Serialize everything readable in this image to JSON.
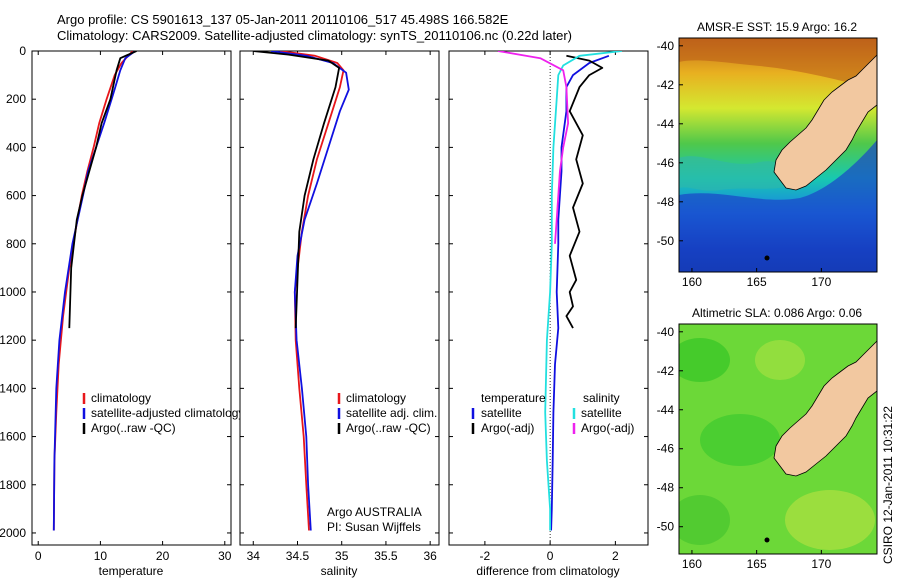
{
  "header": {
    "line1": "Argo profile: CS 5901613_137 05-Jan-2011 20110106_517 45.498S 166.582E",
    "line2": "Climatology: CARS2009. Satellite-adjusted climatology: synTS_20110106.nc (0.22d later)"
  },
  "credit": {
    "argo": "Argo AUSTRALIA",
    "pi": "PI: Susan Wijffels"
  },
  "stamp": "CSIRO 12-Jan-2011 10:31:22",
  "colors": {
    "climatology": "#e8171b",
    "satellite": "#1010e0",
    "argo": "#000000",
    "argo_adj": "#ee22ee",
    "sat_salt": "#22e0e0"
  },
  "chart_data": [
    {
      "type": "line",
      "xlabel": "temperature",
      "xlim": [
        -1,
        31
      ],
      "ylim": [
        2050,
        0
      ],
      "xticks": [
        "0",
        "10",
        "20",
        "30"
      ],
      "yticks": [
        "0",
        "200",
        "400",
        "600",
        "800",
        "1000",
        "1200",
        "1400",
        "1600",
        "1800",
        "2000"
      ],
      "legend": [
        "climatology",
        "satellite-adjusted climatology",
        "Argo(..raw -QC)"
      ],
      "series": [
        {
          "name": "climatology",
          "color": "#e8171b",
          "x": [
            15.2,
            13.4,
            12.3,
            11.0,
            9.8,
            8.9,
            7.9,
            7.0,
            6.3,
            5.0,
            4.0,
            3.3,
            2.9,
            2.6,
            2.5
          ],
          "y": [
            0,
            50,
            100,
            200,
            300,
            400,
            500,
            600,
            700,
            900,
            1100,
            1300,
            1500,
            1700,
            1990
          ]
        },
        {
          "name": "satellite-adjusted climatology",
          "color": "#1010e0",
          "x": [
            15.6,
            14.0,
            13.2,
            12.4,
            11.8,
            10.6,
            9.3,
            8.0,
            7.2,
            5.5,
            4.3,
            3.4,
            2.9,
            2.6,
            2.5
          ],
          "y": [
            0,
            30,
            80,
            150,
            200,
            300,
            400,
            500,
            600,
            800,
            1000,
            1200,
            1400,
            1700,
            1990
          ]
        },
        {
          "name": "Argo(..raw -QC)",
          "color": "#000000",
          "x": [
            15.8,
            13.2,
            12.6,
            11.6,
            10.2,
            9.3,
            8.2,
            7.1,
            6.2,
            5.3,
            5.0
          ],
          "y": [
            0,
            30,
            80,
            200,
            300,
            400,
            500,
            600,
            700,
            900,
            1150
          ]
        }
      ]
    },
    {
      "type": "line",
      "xlabel": "salinity",
      "xlim": [
        33.85,
        36.1
      ],
      "ylim": [
        2050,
        0
      ],
      "xticks": [
        "34",
        "34.5",
        "35",
        "35.5",
        "36"
      ],
      "legend": [
        "climatology",
        "satellite adj. clim.",
        "Argo(..raw -QC)"
      ],
      "series": [
        {
          "name": "climatology",
          "color": "#e8171b",
          "x": [
            34.3,
            34.7,
            34.95,
            35.02,
            34.98,
            34.85,
            34.72,
            34.62,
            34.55,
            34.47,
            34.48,
            34.52,
            34.57,
            34.6,
            34.63
          ],
          "y": [
            0,
            20,
            50,
            80,
            150,
            300,
            450,
            600,
            750,
            1000,
            1200,
            1400,
            1600,
            1800,
            1990
          ]
        },
        {
          "name": "satellite adj. clim.",
          "color": "#1010e0",
          "x": [
            34.2,
            34.6,
            34.9,
            35.05,
            35.08,
            34.98,
            34.85,
            34.72,
            34.58,
            34.5,
            34.47,
            34.49,
            34.55,
            34.6,
            34.62,
            34.65
          ],
          "y": [
            0,
            20,
            50,
            90,
            160,
            250,
            400,
            550,
            700,
            850,
            1000,
            1200,
            1400,
            1600,
            1800,
            1990
          ]
        },
        {
          "name": "Argo(..raw -QC)",
          "color": "#000000",
          "x": [
            34.0,
            34.4,
            34.85,
            34.97,
            34.93,
            34.8,
            34.68,
            34.58,
            34.52,
            34.5,
            34.48
          ],
          "y": [
            0,
            15,
            40,
            70,
            150,
            300,
            450,
            600,
            750,
            950,
            1150
          ]
        }
      ]
    },
    {
      "type": "line",
      "xlabel": "difference from climatology",
      "xlim": [
        -3.1,
        3.0
      ],
      "ylim": [
        2050,
        0
      ],
      "xticks": [
        "-2",
        "0",
        "2"
      ],
      "legend_temperature": {
        "title": "temperature",
        "items": [
          "satellite",
          "Argo(-adj)"
        ]
      },
      "legend_salinity": {
        "title": "salinity",
        "items": [
          "satellite",
          "Argo(-adj)"
        ]
      },
      "series": [
        {
          "name": "temperature satellite",
          "color": "#1010e0",
          "x": [
            1.8,
            1.2,
            0.7,
            0.5,
            0.5,
            0.35,
            0.35,
            0.3,
            0.25,
            0.25,
            0.2,
            0.25,
            0.15,
            0.1,
            0.08,
            0.05,
            0.03
          ],
          "y": [
            20,
            50,
            100,
            150,
            250,
            400,
            500,
            600,
            700,
            800,
            1000,
            1150,
            1300,
            1500,
            1700,
            1900,
            1990
          ]
        },
        {
          "name": "temperature Argo(-adj)",
          "color": "#000000",
          "x": [
            0.5,
            1.2,
            1.6,
            1.2,
            0.9,
            0.6,
            1.0,
            0.8,
            1.0,
            0.7,
            0.9,
            0.6,
            0.8,
            0.6,
            0.7,
            0.5,
            0.7
          ],
          "y": [
            20,
            40,
            70,
            100,
            150,
            250,
            350,
            450,
            550,
            650,
            750,
            850,
            950,
            1000,
            1060,
            1100,
            1150
          ]
        },
        {
          "name": "salinity satellite",
          "color": "#22e0e0",
          "x": [
            2.2,
            0.9,
            0.4,
            0.25,
            0.2,
            0.1,
            0.05,
            0.05,
            0.0,
            -0.1,
            -0.15,
            -0.1,
            0.0,
            0.0
          ],
          "y": [
            0,
            20,
            60,
            100,
            200,
            400,
            600,
            800,
            1000,
            1200,
            1500,
            1700,
            1900,
            1990
          ]
        },
        {
          "name": "salinity Argo(-adj)",
          "color": "#ee22ee",
          "x": [
            -1.6,
            -0.3,
            0.4,
            0.5,
            0.55,
            0.4,
            0.3,
            0.25,
            0.2,
            0.15
          ],
          "y": [
            0,
            30,
            80,
            150,
            300,
            400,
            500,
            600,
            700,
            800
          ]
        }
      ]
    }
  ],
  "maps": [
    {
      "title": "AMSR-E SST: 15.9 Argo: 16.2",
      "xticks": [
        "160",
        "165",
        "170"
      ],
      "yticks": [
        "-40",
        "-42",
        "-44",
        "-46",
        "-48",
        "-50"
      ]
    },
    {
      "title": "Altimetric SLA: 0.086 Argo: 0.06",
      "xticks": [
        "160",
        "165",
        "170"
      ],
      "yticks": [
        "-40",
        "-42",
        "-44",
        "-46",
        "-48",
        "-50"
      ]
    }
  ]
}
